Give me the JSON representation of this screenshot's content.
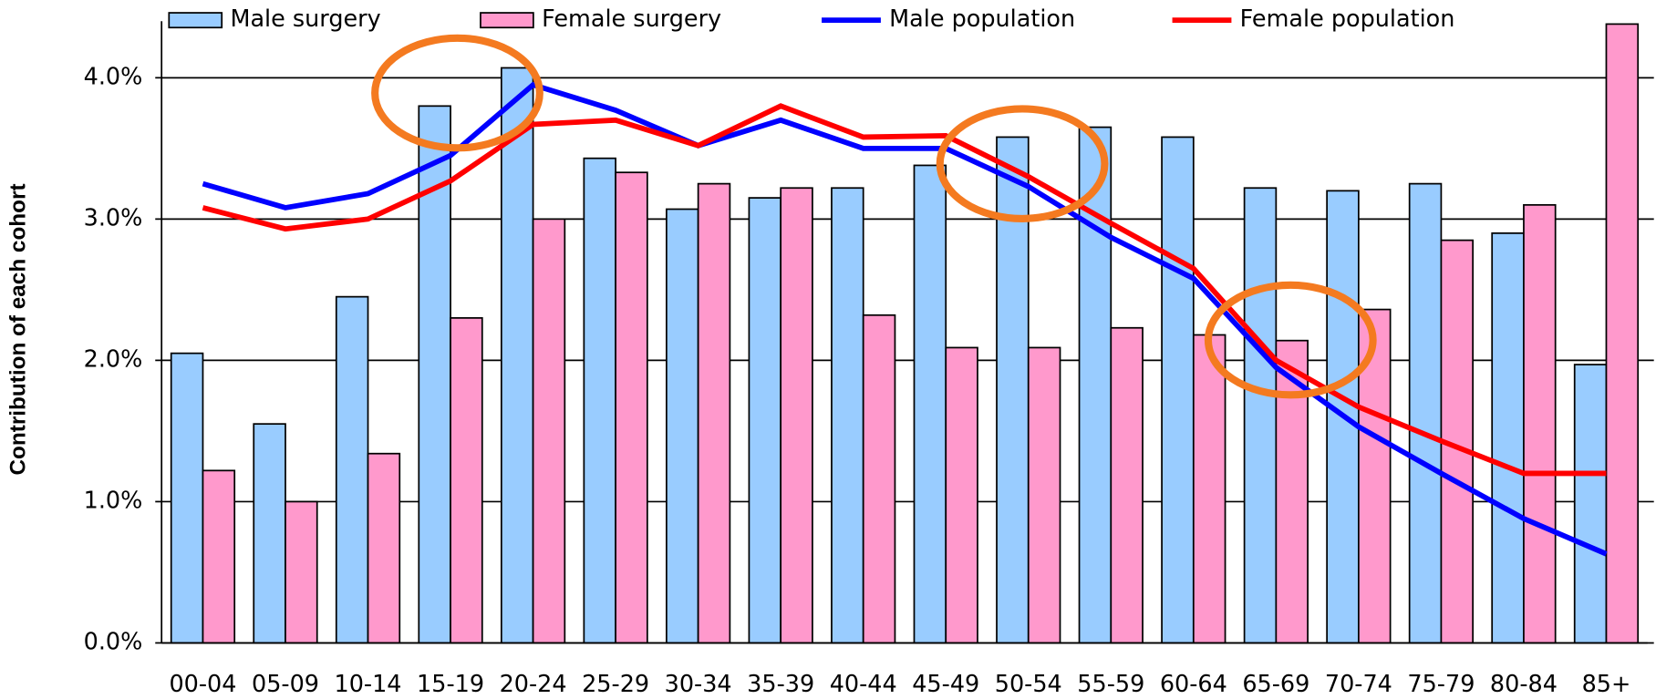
{
  "chart_data": {
    "type": "bar_line",
    "y_axis_label": "Contribution of each cohort",
    "categories": [
      "00-04",
      "05-09",
      "10-14",
      "15-19",
      "20-24",
      "25-29",
      "30-34",
      "35-39",
      "40-44",
      "45-49",
      "50-54",
      "55-59",
      "60-64",
      "65-69",
      "70-74",
      "75-79",
      "80-84",
      "85+"
    ],
    "series": [
      {
        "name": "Male surgery",
        "type": "bar",
        "color": "#99ccff",
        "values": [
          2.05,
          1.55,
          2.45,
          3.8,
          4.07,
          3.43,
          3.07,
          3.15,
          3.22,
          3.38,
          3.58,
          3.65,
          3.58,
          3.22,
          3.2,
          3.25,
          2.9,
          1.97
        ]
      },
      {
        "name": "Female surgery",
        "type": "bar",
        "color": "#ff99cc",
        "values": [
          1.22,
          1.0,
          1.34,
          2.3,
          3.0,
          3.33,
          3.25,
          3.22,
          2.32,
          2.09,
          2.09,
          2.23,
          2.18,
          2.14,
          2.36,
          2.85,
          3.1,
          4.38
        ]
      },
      {
        "name": "Male population",
        "type": "line",
        "color": "#0000ff",
        "values": [
          3.25,
          3.08,
          3.18,
          3.45,
          3.95,
          3.77,
          3.52,
          3.7,
          3.5,
          3.5,
          3.23,
          2.87,
          2.58,
          1.95,
          1.53,
          1.2,
          0.88,
          0.63
        ]
      },
      {
        "name": "Female population",
        "type": "line",
        "color": "#ff0000",
        "values": [
          3.08,
          2.93,
          3.0,
          3.27,
          3.67,
          3.7,
          3.52,
          3.8,
          3.58,
          3.59,
          3.3,
          2.97,
          2.65,
          2.0,
          1.67,
          1.43,
          1.2,
          1.2
        ]
      }
    ],
    "ylim": [
      0,
      4.4
    ],
    "yticks": [
      {
        "value": 0,
        "label": "0.0%"
      },
      {
        "value": 1,
        "label": "1.0%"
      },
      {
        "value": 2,
        "label": "2.0%"
      },
      {
        "value": 3,
        "label": "3.0%"
      },
      {
        "value": 4,
        "label": "4.0%"
      }
    ],
    "grid": true
  }
}
